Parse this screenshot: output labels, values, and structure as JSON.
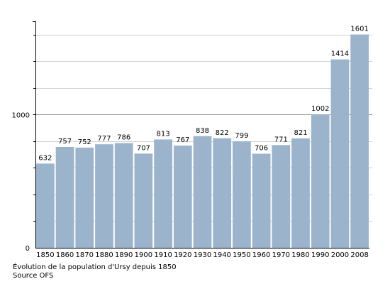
{
  "chart_data": {
    "type": "bar",
    "categories": [
      "1850",
      "1860",
      "1870",
      "1880",
      "1890",
      "1900",
      "1910",
      "1920",
      "1930",
      "1940",
      "1950",
      "1960",
      "1970",
      "1980",
      "1990",
      "2000",
      "2008"
    ],
    "values": [
      632,
      757,
      752,
      777,
      786,
      707,
      813,
      767,
      838,
      822,
      799,
      706,
      771,
      821,
      1002,
      1414,
      1601
    ],
    "data_labels": [
      "632",
      "757",
      "752",
      "777",
      "786",
      "707",
      "813",
      "767",
      "838",
      "822",
      "799",
      "706",
      "771",
      "821",
      "1002",
      "1414",
      "1601"
    ],
    "y_ticks": [
      0,
      1000
    ],
    "y_tick_labels": [
      "0",
      "1000"
    ],
    "ylim": [
      0,
      1700
    ],
    "minor_grid_step": 200,
    "grid": true,
    "bar_color": "#9cb3cc",
    "grid_color": "#d0d0d0",
    "major_grid_color": "#999999"
  },
  "caption": {
    "title": "Évolution de la population d'Ursy depuis 1850",
    "source": "Source OFS"
  }
}
